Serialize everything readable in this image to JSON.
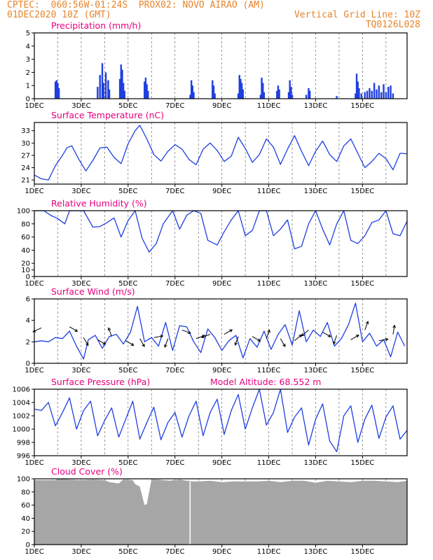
{
  "header": {
    "line1_left": "CPTEC:  060:56W-01:24S  PROX02: NOVO AIRAO (AM)",
    "line2_left": "01DEC2020 10Z (GMT)",
    "line2_right": "Vertical Grid Line: 10Z",
    "line3_right": "TQ0126L028"
  },
  "colors": {
    "title": "#e6007e",
    "header": "#e8842a",
    "series": "#1f3fe0",
    "cloud": "#a6a6a6",
    "arrow": "#000000"
  },
  "x_tick_labels": [
    "1DEC",
    "3DEC",
    "5DEC",
    "7DEC",
    "9DEC",
    "11DEC",
    "13DEC",
    "15DEC"
  ],
  "chart_data": [
    {
      "type": "bar",
      "title": "Precipitation (mm/h)",
      "ylim": [
        0,
        5
      ],
      "yticks": [
        "0",
        "1",
        "2",
        "3",
        "4",
        "5"
      ],
      "x_unit": "days since 1DEC 00Z",
      "bars": [
        [
          0.9,
          1.3
        ],
        [
          0.95,
          1.4
        ],
        [
          1.0,
          1.2
        ],
        [
          1.05,
          0.8
        ],
        [
          2.7,
          0.9
        ],
        [
          2.8,
          1.8
        ],
        [
          2.9,
          2.7
        ],
        [
          2.95,
          1.2
        ],
        [
          3.05,
          2.0
        ],
        [
          3.15,
          1.4
        ],
        [
          3.2,
          0.7
        ],
        [
          3.65,
          1.5
        ],
        [
          3.7,
          2.6
        ],
        [
          3.75,
          2.2
        ],
        [
          3.8,
          1.2
        ],
        [
          3.85,
          0.6
        ],
        [
          4.7,
          1.3
        ],
        [
          4.75,
          1.6
        ],
        [
          4.8,
          1.1
        ],
        [
          4.85,
          0.6
        ],
        [
          6.65,
          0.3
        ],
        [
          6.7,
          1.4
        ],
        [
          6.75,
          1.0
        ],
        [
          6.8,
          0.5
        ],
        [
          7.6,
          1.4
        ],
        [
          7.65,
          1.0
        ],
        [
          7.7,
          0.4
        ],
        [
          8.7,
          0.4
        ],
        [
          8.75,
          1.8
        ],
        [
          8.8,
          1.5
        ],
        [
          8.85,
          1.2
        ],
        [
          8.9,
          0.7
        ],
        [
          9.65,
          0.3
        ],
        [
          9.7,
          1.6
        ],
        [
          9.75,
          1.2
        ],
        [
          9.8,
          0.5
        ],
        [
          10.35,
          0.6
        ],
        [
          10.4,
          1.0
        ],
        [
          10.45,
          0.7
        ],
        [
          10.85,
          0.5
        ],
        [
          10.9,
          1.4
        ],
        [
          10.95,
          0.9
        ],
        [
          11.0,
          0.3
        ],
        [
          11.6,
          0.3
        ],
        [
          11.7,
          0.8
        ],
        [
          11.75,
          0.6
        ],
        [
          12.9,
          0.2
        ],
        [
          13.7,
          0.4
        ],
        [
          13.75,
          1.9
        ],
        [
          13.8,
          1.3
        ],
        [
          13.85,
          0.8
        ],
        [
          13.95,
          0.4
        ],
        [
          14.1,
          0.5
        ],
        [
          14.2,
          0.6
        ],
        [
          14.3,
          0.8
        ],
        [
          14.4,
          0.6
        ],
        [
          14.5,
          1.2
        ],
        [
          14.6,
          0.7
        ],
        [
          14.7,
          1.0
        ],
        [
          14.8,
          0.5
        ],
        [
          14.9,
          1.1
        ],
        [
          15.0,
          0.5
        ],
        [
          15.1,
          0.9
        ],
        [
          15.2,
          1.0
        ],
        [
          15.3,
          0.4
        ]
      ],
      "xlim": [
        0,
        15.9
      ]
    },
    {
      "type": "line",
      "title": "Surface Temperature (nC)",
      "ylim": [
        20,
        35
      ],
      "yticks": [
        "21",
        "24",
        "27",
        "30",
        "33"
      ],
      "xlim": [
        0,
        15.9
      ],
      "x": [
        0.0,
        0.3,
        0.6,
        0.9,
        1.2,
        1.4,
        1.6,
        1.9,
        2.2,
        2.5,
        2.8,
        3.1,
        3.4,
        3.7,
        4.0,
        4.3,
        4.5,
        4.8,
        5.1,
        5.4,
        5.7,
        6.0,
        6.3,
        6.6,
        6.9,
        7.2,
        7.5,
        7.8,
        8.1,
        8.4,
        8.7,
        9.0,
        9.3,
        9.6,
        9.9,
        10.2,
        10.5,
        10.8,
        11.1,
        11.4,
        11.7,
        12.0,
        12.3,
        12.6,
        12.9,
        13.2,
        13.5,
        13.8,
        14.1,
        14.4,
        14.7,
        15.0,
        15.3,
        15.6,
        15.9
      ],
      "y": [
        22.2,
        21.3,
        21.0,
        24.5,
        27.0,
        28.9,
        29.3,
        26.0,
        23.2,
        25.8,
        28.8,
        29.0,
        26.5,
        25.0,
        29.8,
        33.0,
        34.3,
        31.0,
        27.2,
        25.6,
        28.0,
        29.6,
        28.5,
        26.0,
        24.7,
        28.5,
        30.0,
        28.2,
        25.5,
        26.8,
        31.4,
        28.7,
        25.3,
        27.2,
        31.0,
        29.0,
        24.8,
        28.5,
        31.8,
        28.0,
        24.5,
        28.0,
        30.5,
        27.2,
        25.5,
        29.3,
        31.0,
        27.5,
        24.0,
        25.5,
        27.5,
        26.2,
        23.5,
        27.5,
        27.4
      ]
    },
    {
      "type": "line",
      "title": "Relative Humidity (%)",
      "ylim": [
        0,
        100
      ],
      "yticks": [
        "0",
        "10",
        "20",
        "40",
        "60",
        "80",
        "100"
      ],
      "xlim": [
        0,
        15.9
      ],
      "x": [
        0.0,
        0.4,
        0.7,
        1.0,
        1.3,
        1.5,
        1.8,
        2.1,
        2.5,
        2.8,
        3.1,
        3.4,
        3.7,
        4.0,
        4.3,
        4.6,
        4.9,
        5.2,
        5.5,
        5.9,
        6.2,
        6.5,
        6.8,
        7.1,
        7.4,
        7.8,
        8.1,
        8.4,
        8.7,
        9.0,
        9.3,
        9.6,
        9.9,
        10.2,
        10.5,
        10.8,
        11.1,
        11.4,
        11.7,
        12.0,
        12.3,
        12.6,
        12.9,
        13.2,
        13.5,
        13.8,
        14.1,
        14.4,
        14.7,
        15.0,
        15.3,
        15.6,
        15.9
      ],
      "y": [
        100,
        100,
        93,
        88,
        80,
        100,
        100,
        100,
        75,
        76,
        82,
        89,
        60,
        85,
        100,
        58,
        37,
        50,
        80,
        100,
        72,
        93,
        100,
        96,
        55,
        48,
        68,
        86,
        100,
        62,
        70,
        100,
        100,
        62,
        72,
        86,
        42,
        46,
        80,
        100,
        72,
        48,
        80,
        100,
        55,
        50,
        62,
        82,
        86,
        100,
        65,
        62,
        84
      ]
    },
    {
      "type": "line",
      "title": "Surface Wind (m/s)",
      "ylim": [
        0,
        6
      ],
      "yticks": [
        "0",
        "2",
        "4",
        "6"
      ],
      "xlim": [
        0,
        15.9
      ],
      "x": [
        0.0,
        0.3,
        0.6,
        0.9,
        1.2,
        1.5,
        1.8,
        2.1,
        2.3,
        2.6,
        2.9,
        3.2,
        3.5,
        3.8,
        4.1,
        4.4,
        4.7,
        5.0,
        5.3,
        5.6,
        5.9,
        6.2,
        6.5,
        6.8,
        7.1,
        7.4,
        7.7,
        8.0,
        8.3,
        8.6,
        8.9,
        9.2,
        9.5,
        9.8,
        10.1,
        10.4,
        10.7,
        11.0,
        11.3,
        11.6,
        11.9,
        12.2,
        12.5,
        12.8,
        13.1,
        13.4,
        13.7,
        14.0,
        14.3,
        14.6,
        14.9,
        15.2,
        15.5,
        15.8
      ],
      "y": [
        2.0,
        2.1,
        2.0,
        2.4,
        2.3,
        3.0,
        1.6,
        0.4,
        2.2,
        2.6,
        1.4,
        2.5,
        2.7,
        1.8,
        2.9,
        5.3,
        2.0,
        2.4,
        1.6,
        3.8,
        1.2,
        3.5,
        3.4,
        2.0,
        1.0,
        3.2,
        2.4,
        1.2,
        2.1,
        2.6,
        0.5,
        2.3,
        1.5,
        3.0,
        1.3,
        2.7,
        3.6,
        1.7,
        4.9,
        2.0,
        3.1,
        2.5,
        3.8,
        1.6,
        2.3,
        3.6,
        5.6,
        2.0,
        2.8,
        1.6,
        2.2,
        0.6,
        2.9,
        1.6
      ],
      "arrows_x": [
        0.3,
        1.5,
        2.1,
        2.7,
        3.3,
        3.9,
        4.5,
        5.1,
        5.7,
        6.3,
        6.9,
        7.5,
        8.1,
        8.7,
        9.3,
        9.9,
        10.5,
        11.1,
        11.7,
        12.3,
        12.9,
        13.5,
        14.1,
        14.7,
        15.3
      ],
      "arrows_y": [
        3.3,
        3.4,
        2.4,
        2.2,
        2.5,
        2.1,
        2.3,
        2.4,
        2.3,
        3.1,
        2.3,
        2.7,
        2.7,
        2.5,
        2.5,
        2.3,
        2.3,
        2.1,
        3.1,
        2.9,
        2.6,
        2.2,
        3.1,
        2.1,
        2.7
      ],
      "arrows_angle": [
        205,
        330,
        300,
        330,
        110,
        330,
        300,
        10,
        250,
        340,
        20,
        200,
        30,
        250,
        330,
        70,
        300,
        40,
        220,
        330,
        250,
        30,
        70,
        10,
        80
      ]
    },
    {
      "type": "line",
      "title": "Surface Pressure (hPa)",
      "annotation": "Model Altitude: 68.552 m",
      "ylim": [
        996,
        1006
      ],
      "yticks": [
        "996",
        "998",
        "1000",
        "1002",
        "1004",
        "1006"
      ],
      "xlim": [
        0,
        15.9
      ],
      "x": [
        0.0,
        0.3,
        0.6,
        0.9,
        1.2,
        1.5,
        1.8,
        2.1,
        2.4,
        2.7,
        3.0,
        3.3,
        3.6,
        3.9,
        4.2,
        4.5,
        4.8,
        5.1,
        5.4,
        5.7,
        6.0,
        6.3,
        6.6,
        6.9,
        7.2,
        7.5,
        7.8,
        8.1,
        8.4,
        8.7,
        9.0,
        9.3,
        9.6,
        9.9,
        10.2,
        10.5,
        10.8,
        11.1,
        11.4,
        11.7,
        12.0,
        12.3,
        12.6,
        12.9,
        13.2,
        13.5,
        13.8,
        14.1,
        14.4,
        14.7,
        15.0,
        15.3,
        15.6,
        15.9
      ],
      "y": [
        1003.0,
        1002.8,
        1004.0,
        1000.5,
        1002.5,
        1004.7,
        1000.0,
        1002.8,
        1004.2,
        999.0,
        1001.3,
        1003.2,
        998.8,
        1001.5,
        1004.2,
        998.5,
        1001.0,
        1003.3,
        998.4,
        1001.0,
        1002.5,
        998.8,
        1002.0,
        1004.2,
        999.0,
        1002.5,
        1004.5,
        999.2,
        1002.8,
        1005.2,
        1000.0,
        1003.2,
        1006.0,
        1000.6,
        1002.5,
        1006.0,
        999.5,
        1001.8,
        1003.2,
        997.6,
        1001.5,
        1003.8,
        998.2,
        996.6,
        1002.0,
        1003.5,
        998.0,
        1001.5,
        1003.6,
        998.6,
        1001.8,
        1003.5,
        998.5,
        999.8
      ]
    },
    {
      "type": "area",
      "title": "Cloud Cover (%)",
      "ylim": [
        0,
        100
      ],
      "yticks": [
        "0",
        "20",
        "40",
        "60",
        "80",
        "100"
      ],
      "xlim": [
        0,
        15.9
      ],
      "x": [
        0.0,
        0.9,
        1.0,
        2.0,
        2.5,
        3.0,
        3.2,
        3.6,
        3.8,
        4.2,
        4.3,
        4.5,
        4.7,
        4.8,
        5.0,
        5.2,
        5.5,
        5.8,
        5.9,
        6.0,
        6.2,
        6.5,
        6.6,
        6.7,
        7.0,
        7.5,
        8.0,
        8.5,
        9.0,
        9.5,
        10.0,
        10.5,
        11.0,
        11.5,
        12.0,
        12.5,
        13.0,
        13.5,
        14.0,
        14.5,
        15.0,
        15.5,
        15.9
      ],
      "y": [
        98,
        98,
        100,
        98,
        99,
        98,
        95,
        93,
        99,
        98,
        92,
        88,
        60,
        62,
        99,
        99,
        98,
        97,
        98,
        98,
        99,
        97,
        97,
        96,
        96,
        97,
        95,
        96,
        96,
        96,
        97,
        95,
        97,
        97,
        94,
        97,
        96,
        95,
        97,
        97,
        96,
        95,
        97
      ]
    }
  ]
}
